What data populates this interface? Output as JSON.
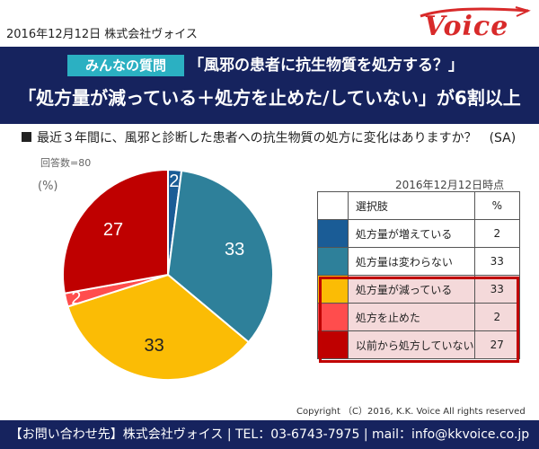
{
  "header": {
    "date_company": "2016年12月12日 株式会社ヴォイス",
    "logo_text": "Voice"
  },
  "banner": {
    "badge": "みんなの質問",
    "title_line1": "「風邪の患者に抗生物質を処方する？」",
    "title_line2": "「処方量が減っている＋処方を止めた/していない」が6割以上"
  },
  "question": "最近３年間に、風邪と診断した患者への抗生物質の処方に変化はありますか？　(SA)",
  "respondents": "回答数=80",
  "unit": "(%)",
  "as_of": "2016年12月12日時点",
  "table": {
    "header_choice": "選択肢",
    "header_pct": "%"
  },
  "colors": {
    "banner": "#16235e",
    "badge": "#2bb0c2",
    "highlight": "#c00000",
    "logo": "#d82a2a"
  },
  "chart_data": {
    "type": "pie",
    "unit": "%",
    "slices": [
      {
        "label": "処方量が増えている",
        "value": 2,
        "color": "#1a5c96"
      },
      {
        "label": "処方量は変わらない",
        "value": 33,
        "color": "#2e809a"
      },
      {
        "label": "処方量が減っている",
        "value": 33,
        "color": "#fbbc05"
      },
      {
        "label": "処方を止めた",
        "value": 2,
        "color": "#ff4d4d"
      },
      {
        "label": "以前から処方していない",
        "value": 27,
        "color": "#bf0000"
      }
    ],
    "highlighted": [
      "処方量が減っている",
      "処方を止めた",
      "以前から処方していない"
    ]
  },
  "copyright": "Copyright （C）2016, K.K. Voice All rights reserved",
  "footer": "【お問い合わせ先】株式会社ヴォイス | TEL：03-6743-7975 | mail：info@kkvoice.co.jp"
}
